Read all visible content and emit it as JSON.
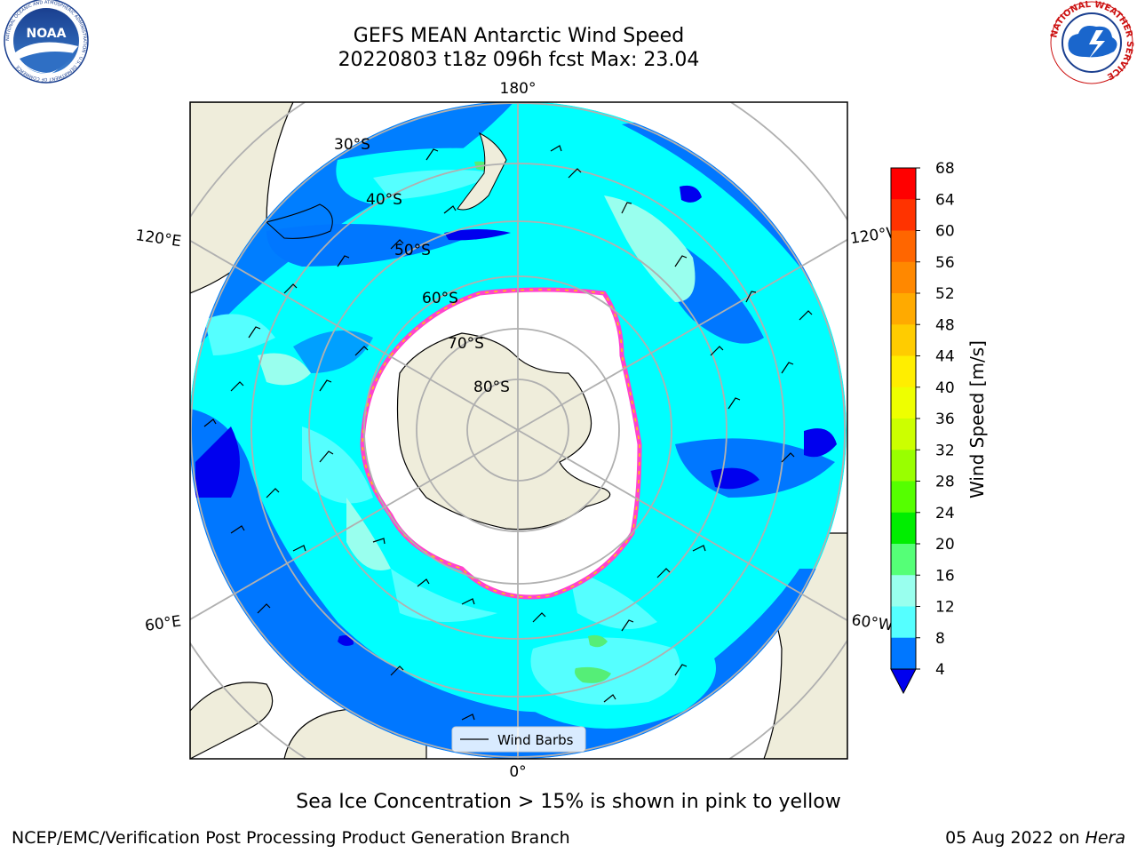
{
  "header": {
    "title": "GEFS MEAN Antarctic Wind Speed",
    "subtitle": "20220803 t18z 096h fcst   Max: 23.04"
  },
  "logos": {
    "left": "noaa-logo",
    "left_text": "NOAA",
    "left_ring_text": "NATIONAL OCEANIC AND ATMOSPHERIC ADMINISTRATION · U.S. DEPARTMENT OF COMMERCE",
    "right": "nws-logo",
    "right_ring_text": "NATIONAL WEATHER SERVICE"
  },
  "map": {
    "projection": "south-polar-stereographic",
    "longitude_labels": [
      "180°",
      "120°E",
      "120°W",
      "60°E",
      "60°W",
      "0°"
    ],
    "latitude_labels": [
      "30°S",
      "40°S",
      "50°S",
      "60°S",
      "70°S",
      "80°S"
    ],
    "legend_label": "Wind Barbs",
    "colors": {
      "ocean_base": "#00ffff",
      "land": "#efeddb",
      "ice_edge": "#ff44cc",
      "ice_edge_inner": "#ffcc00",
      "gridline": "#b0b0b0"
    }
  },
  "colorbar": {
    "label": "Wind Speed [m/s]",
    "ticks": [
      "68",
      "64",
      "60",
      "56",
      "52",
      "48",
      "44",
      "40",
      "36",
      "32",
      "28",
      "24",
      "20",
      "16",
      "12",
      "8",
      "4"
    ],
    "colors": [
      "#ff0000",
      "#ff3300",
      "#ff6600",
      "#ff8800",
      "#ffaa00",
      "#ffcc00",
      "#ffee00",
      "#eeff00",
      "#ccff00",
      "#99ff00",
      "#55ff00",
      "#00ee00",
      "#55ff77",
      "#99ffee",
      "#55ffff",
      "#00ffff",
      "#0077ff"
    ],
    "under_color": "#0000ee"
  },
  "footer": {
    "note": "Sea Ice Concentration > 15% is shown in pink to yellow",
    "credit": "NCEP/EMC/Verification Post Processing Product Generation Branch",
    "date": "05 Aug 2022 on",
    "host": "Hera"
  }
}
